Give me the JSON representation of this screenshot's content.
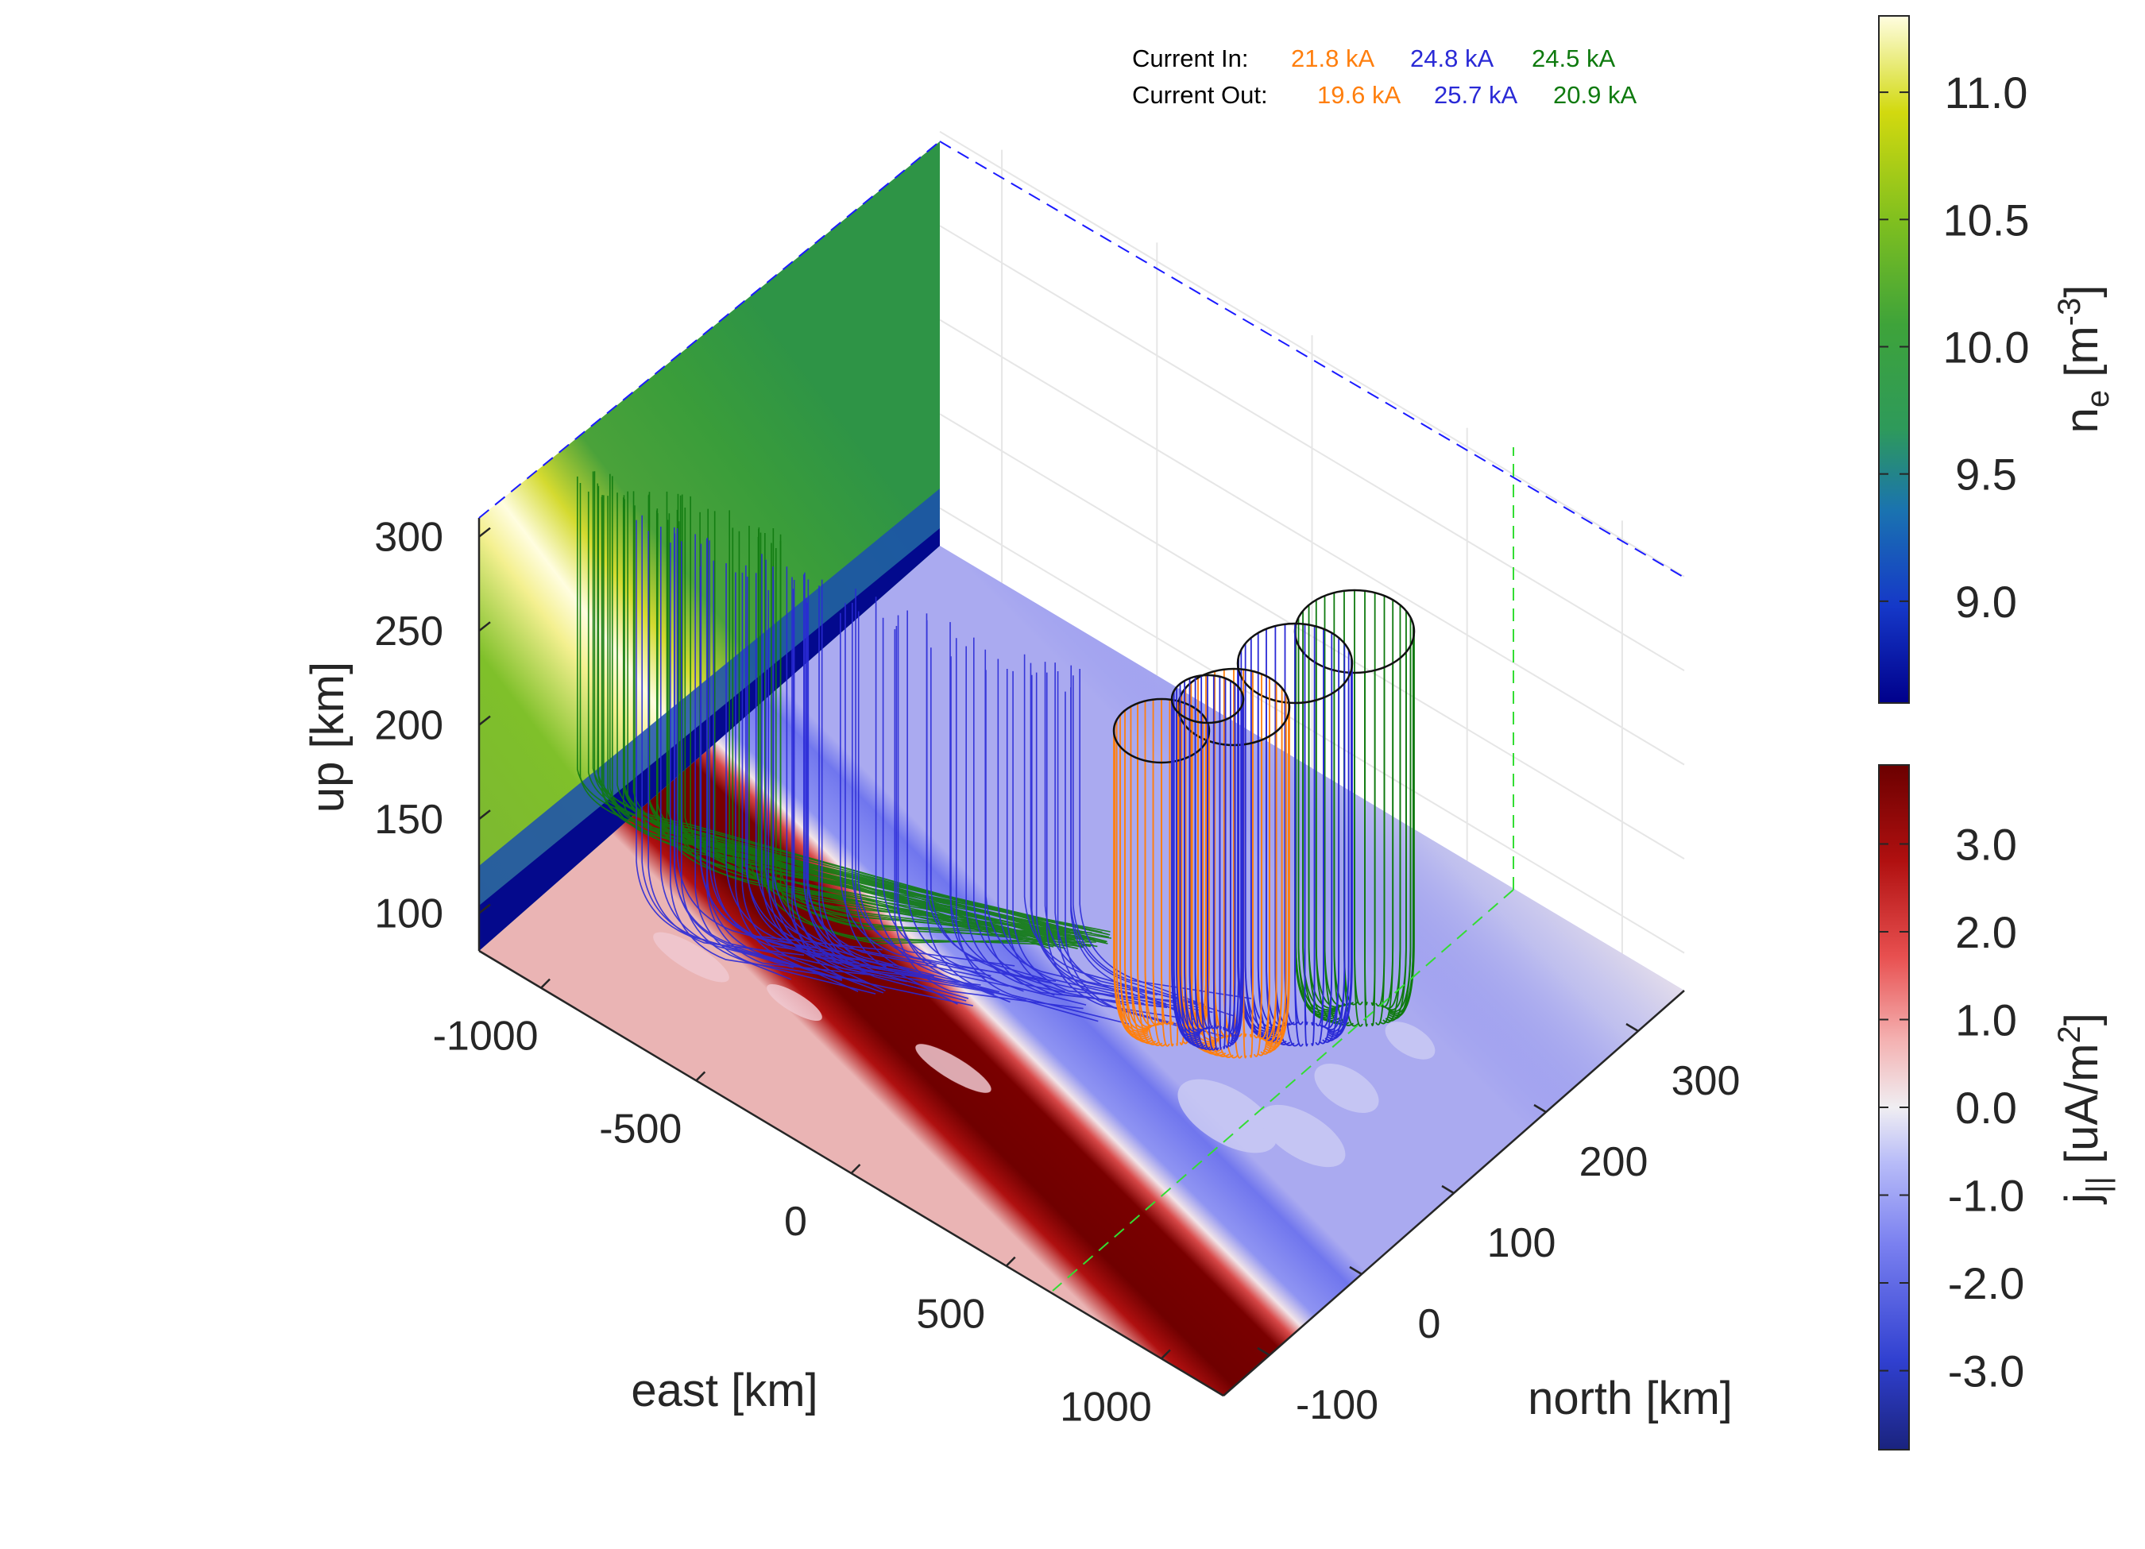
{
  "chart_data": {
    "type": "3d-surface-fieldlines",
    "legend": {
      "in_label": "Current In:",
      "out_label": "Current Out:",
      "in_values": [
        "21.8 kA",
        "24.8 kA",
        "24.5 kA"
      ],
      "out_values": [
        "19.6 kA",
        "25.7 kA",
        "20.9 kA"
      ],
      "colors": [
        "#ff7f0e",
        "#2a2ad6",
        "#0f7a0f"
      ]
    },
    "axes": {
      "up": {
        "label": "up [km]",
        "ticks": [
          "300",
          "250",
          "200",
          "150",
          "100"
        ],
        "range": [
          80,
          310
        ]
      },
      "east": {
        "label": "east [km]",
        "ticks": [
          "-1000",
          "-500",
          "0",
          "500",
          "1000"
        ],
        "range": [
          -1200,
          1200
        ]
      },
      "north": {
        "label": "north [km]",
        "ticks": [
          "300",
          "200",
          "100",
          "0",
          "-100"
        ],
        "range": [
          -150,
          350
        ]
      }
    },
    "colorbars": [
      {
        "name": "ne",
        "label_main": "n",
        "label_sub": "e",
        "label_rest": " [m",
        "label_sup": "-3",
        "label_end": "]",
        "ticks": [
          "11.0",
          "10.5",
          "10.0",
          "9.5",
          "9.0"
        ],
        "range": [
          8.6,
          11.3
        ],
        "colormap": [
          "#00008b",
          "#1538c8",
          "#1a73b0",
          "#2e9a5a",
          "#3ea33a",
          "#7fbf1f",
          "#d2d90f",
          "#fffde0"
        ]
      },
      {
        "name": "jpar",
        "label_main": "j",
        "label_sub": "||",
        "label_rest": " [uA/m",
        "label_sup": "2",
        "label_end": "]",
        "ticks": [
          "3.0",
          "2.0",
          "1.0",
          "0.0",
          "-1.0",
          "-2.0",
          "-3.0"
        ],
        "range": [
          -3.9,
          3.9
        ],
        "colormap": [
          "#1a237e",
          "#3040d0",
          "#7a80f0",
          "#b8bcf8",
          "#f0eef2",
          "#f4b0b0",
          "#e85050",
          "#b01010",
          "#6b0000"
        ]
      }
    ],
    "floor_map": {
      "type": "heatmap",
      "variable": "j_parallel",
      "positive_band": "red",
      "negative_region": "blue"
    },
    "wall_map": {
      "type": "heatmap",
      "variable": "n_e"
    },
    "field_line_tubes": [
      {
        "color": "#ff7f0e",
        "current_in": "21.8 kA",
        "current_out": "19.6 kA"
      },
      {
        "color": "#2a2ad6",
        "current_in": "24.8 kA",
        "current_out": "25.7 kA"
      },
      {
        "color": "#0f7a0f",
        "current_in": "24.5 kA",
        "current_out": "20.9 kA"
      }
    ]
  }
}
